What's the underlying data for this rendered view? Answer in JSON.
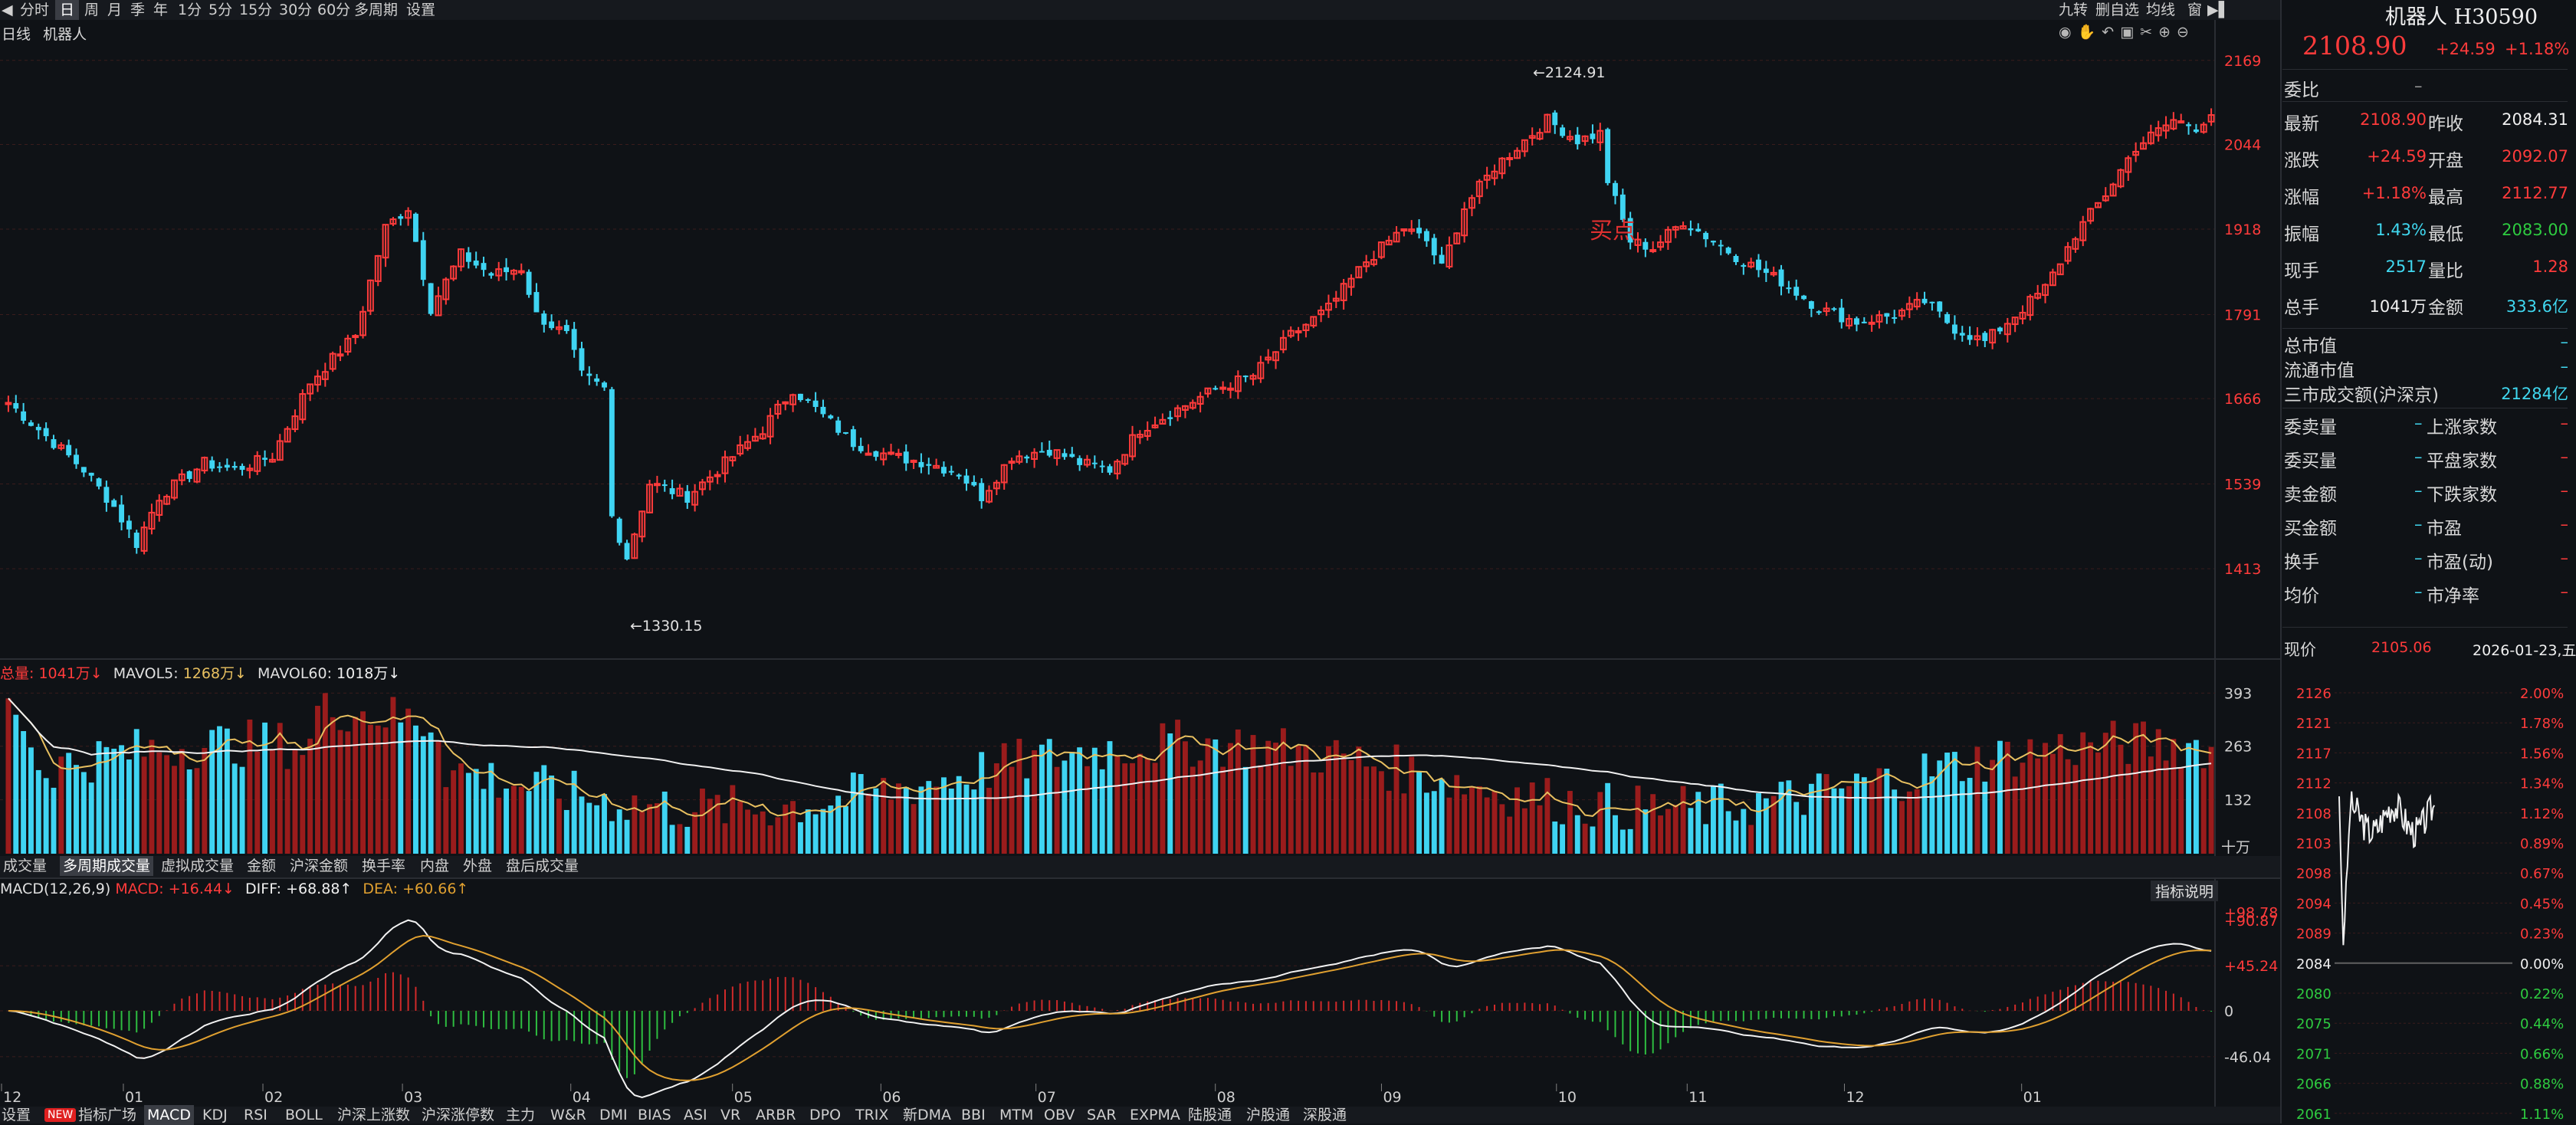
{
  "toolbar": {
    "items": [
      "分时",
      "日",
      "周",
      "月",
      "季",
      "年",
      "1分",
      "5分",
      "15分",
      "30分",
      "60分",
      "多周期",
      "设置"
    ],
    "active_index": 1,
    "right_items": [
      "九转",
      "删自选",
      "均线",
      "窗"
    ]
  },
  "chart_header": {
    "left": "日线",
    "name": "机器人"
  },
  "price_axis": [
    "2169",
    "2044",
    "1918",
    "1791",
    "1666",
    "1539",
    "1413"
  ],
  "annotations": {
    "high": "2124.91",
    "low": "1330.15",
    "buy_mark": "买点"
  },
  "volume": {
    "header": {
      "label": "总量: ",
      "value": "1041万↓",
      "ma5_label": "MAVOL5: ",
      "ma5_value": "1268万↓",
      "ma60_label": "MAVOL60: ",
      "ma60_value": "1018万↓"
    },
    "axis": [
      "393",
      "263",
      "132"
    ],
    "unit": "十万",
    "tabs": [
      "成交量",
      "多周期成交量",
      "虚拟成交量",
      "金额",
      "沪深金额",
      "换手率",
      "内盘",
      "外盘",
      "盘后成交量"
    ],
    "active_tab": 1
  },
  "macd": {
    "header": {
      "label": "MACD(12,26,9) ",
      "macd": "MACD: +16.44↓",
      "diff": "DIFF: +68.88↑",
      "dea": "DEA: +60.66↑"
    },
    "axis_top": [
      "+98.78",
      "+90.87"
    ],
    "axis": [
      "+45.24",
      "0",
      "-46.04"
    ],
    "explain_button": "指标说明"
  },
  "months": [
    "12",
    "01",
    "02",
    "03",
    "04",
    "05",
    "06",
    "07",
    "08",
    "09",
    "10",
    "11",
    "12",
    "01"
  ],
  "bottom_tabs": [
    "设置",
    "NEW",
    "指标广场",
    "MACD",
    "KDJ",
    "RSI",
    "BOLL",
    "沪深上涨数",
    "沪深涨停数",
    "主力",
    "W&R",
    "DMI",
    "BIAS",
    "ASI",
    "VR",
    "ARBR",
    "DPO",
    "TRIX",
    "新DMA",
    "BBI",
    "MTM",
    "OBV",
    "SAR",
    "EXPMA",
    "陆股通",
    "沪股通",
    "深股通"
  ],
  "bottom_active": 3,
  "quote": {
    "title": "机器人 H30590",
    "price": "2108.90",
    "change": "+24.59",
    "change_pct": "+1.18%",
    "weibi_label": "委比",
    "weibi_value": "–",
    "rows": [
      {
        "l1": "最新",
        "v1": "2108.90",
        "c1": "red",
        "l2": "昨收",
        "v2": "2084.31",
        "c2": "white"
      },
      {
        "l1": "涨跌",
        "v1": "+24.59",
        "c1": "red",
        "l2": "开盘",
        "v2": "2092.07",
        "c2": "red"
      },
      {
        "l1": "涨幅",
        "v1": "+1.18%",
        "c1": "red",
        "l2": "最高",
        "v2": "2112.77",
        "c2": "red"
      },
      {
        "l1": "振幅",
        "v1": "1.43%",
        "c1": "cyan",
        "l2": "最低",
        "v2": "2083.00",
        "c2": "green"
      },
      {
        "l1": "现手",
        "v1": "2517",
        "c1": "cyan",
        "l2": "量比",
        "v2": "1.28",
        "c2": "red"
      },
      {
        "l1": "总手",
        "v1": "1041万",
        "c1": "white",
        "l2": "金额",
        "v2": "333.6亿",
        "c2": "cyan"
      }
    ],
    "single_rows": [
      {
        "l": "总市值",
        "v": "–"
      },
      {
        "l": "流通市值",
        "v": "–"
      },
      {
        "l": "三市成交额(沪深京)",
        "v": "21284亿"
      }
    ],
    "pair_rows": [
      {
        "l1": "委卖量",
        "v1": "–",
        "l2": "上涨家数",
        "v2": "–"
      },
      {
        "l1": "委买量",
        "v1": "–",
        "l2": "平盘家数",
        "v2": "–"
      },
      {
        "l1": "卖金额",
        "v1": "–",
        "l2": "下跌家数",
        "v2": "–"
      },
      {
        "l1": "买金额",
        "v1": "–",
        "l2": "市盈",
        "v2": "–"
      },
      {
        "l1": "换手",
        "v1": "–",
        "l2": "市盈(动)",
        "v2": "–"
      },
      {
        "l1": "均价",
        "v1": "–",
        "l2": "市净率",
        "v2": "–"
      }
    ],
    "current_label": "现价",
    "current_value": "2105.06",
    "date": "2026-01-23,五"
  },
  "chart_data": {
    "type": "candlestick",
    "title": "机器人",
    "ylim": [
      1290,
      2195
    ],
    "price_ticks": [
      2169,
      2044,
      1918,
      1791,
      1666,
      1539,
      1413
    ],
    "high_mark": 2124.91,
    "low_mark": 1330.15,
    "months": [
      "12",
      "01",
      "02",
      "03",
      "04",
      "05",
      "06",
      "07",
      "08",
      "09",
      "10",
      "11",
      "12",
      "01"
    ],
    "close_path": [
      [
        0,
        1660
      ],
      [
        6,
        1600
      ],
      [
        10,
        1560
      ],
      [
        14,
        1505
      ],
      [
        17,
        1450
      ],
      [
        20,
        1520
      ],
      [
        26,
        1570
      ],
      [
        30,
        1560
      ],
      [
        35,
        1580
      ],
      [
        40,
        1690
      ],
      [
        46,
        1760
      ],
      [
        50,
        1920
      ],
      [
        53,
        1950
      ],
      [
        56,
        1800
      ],
      [
        60,
        1880
      ],
      [
        64,
        1850
      ],
      [
        68,
        1860
      ],
      [
        70,
        1790
      ],
      [
        74,
        1760
      ],
      [
        76,
        1700
      ],
      [
        79,
        1680
      ],
      [
        80,
        1490
      ],
      [
        82,
        1430
      ],
      [
        85,
        1540
      ],
      [
        90,
        1520
      ],
      [
        95,
        1570
      ],
      [
        100,
        1620
      ],
      [
        104,
        1680
      ],
      [
        108,
        1640
      ],
      [
        112,
        1600
      ],
      [
        117,
        1580
      ],
      [
        122,
        1570
      ],
      [
        126,
        1555
      ],
      [
        129,
        1520
      ],
      [
        133,
        1580
      ],
      [
        138,
        1590
      ],
      [
        142,
        1570
      ],
      [
        146,
        1560
      ],
      [
        150,
        1620
      ],
      [
        155,
        1650
      ],
      [
        160,
        1680
      ],
      [
        165,
        1700
      ],
      [
        170,
        1760
      ],
      [
        175,
        1800
      ],
      [
        180,
        1870
      ],
      [
        185,
        1920
      ],
      [
        188,
        1900
      ],
      [
        190,
        1860
      ],
      [
        193,
        1950
      ],
      [
        197,
        2010
      ],
      [
        200,
        2040
      ],
      [
        204,
        2080
      ],
      [
        208,
        2050
      ],
      [
        211,
        2060
      ],
      [
        212,
        1990
      ],
      [
        215,
        1900
      ],
      [
        218,
        1890
      ],
      [
        222,
        1930
      ],
      [
        226,
        1900
      ],
      [
        230,
        1870
      ],
      [
        235,
        1840
      ],
      [
        240,
        1800
      ],
      [
        245,
        1780
      ],
      [
        250,
        1790
      ],
      [
        254,
        1810
      ],
      [
        258,
        1770
      ],
      [
        262,
        1750
      ],
      [
        266,
        1790
      ],
      [
        270,
        1830
      ],
      [
        274,
        1910
      ],
      [
        278,
        1970
      ],
      [
        282,
        2040
      ],
      [
        287,
        2080
      ],
      [
        290,
        2070
      ],
      [
        292,
        2090
      ]
    ],
    "volume_axis": [
      393,
      263,
      132
    ],
    "volume_unit": "十万",
    "volume_last": "1041万",
    "mavol5_last": "1268万",
    "mavol60_last": "1018万",
    "macd_params": "12,26,9",
    "macd_last": 16.44,
    "diff_last": 68.88,
    "dea_last": 60.66,
    "macd_axis": [
      98.78,
      90.87,
      45.24,
      0,
      -46.04
    ]
  },
  "intraday": {
    "type": "line",
    "left_axis": [
      "2126",
      "2121",
      "2117",
      "2112",
      "2108",
      "2103",
      "2098",
      "2094",
      "2089",
      "2084",
      "2080",
      "2075",
      "2071",
      "2066",
      "2061"
    ],
    "right_axis": [
      "2.00%",
      "1.78%",
      "1.56%",
      "1.34%",
      "1.12%",
      "0.89%",
      "0.67%",
      "0.45%",
      "0.23%",
      "0.00%",
      "0.22%",
      "0.44%",
      "0.66%",
      "0.88%",
      "1.11%"
    ],
    "baseline": 2084,
    "ylim": [
      2061,
      2126
    ]
  },
  "colors": {
    "up": "#ff3b3b",
    "down": "#3fd4f2",
    "bg": "#0f1216",
    "diff": "#f2f2f2",
    "dea": "#e0a030",
    "grid": "#3a1c1c"
  }
}
